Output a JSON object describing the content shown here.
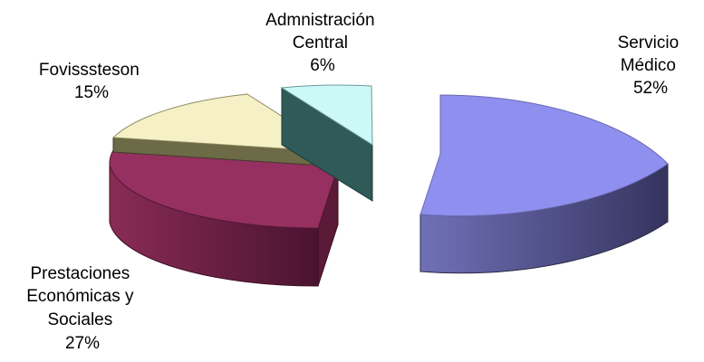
{
  "chart_data": {
    "type": "pie",
    "three_d": true,
    "exploded": true,
    "legend": "none",
    "slices": [
      {
        "key": "servicio",
        "label_lines": [
          "Servicio",
          "Médico"
        ],
        "percent_label": "52%",
        "value": 52,
        "color": "#8f8fef"
      },
      {
        "key": "prestaciones",
        "label_lines": [
          "Prestaciones",
          "Económicas y",
          "Sociales"
        ],
        "percent_label": "27%",
        "value": 27,
        "color": "#963060"
      },
      {
        "key": "fovissteson",
        "label_lines": [
          "Fovisssteson"
        ],
        "percent_label": "15%",
        "value": 15,
        "color": "#f5f0c5"
      },
      {
        "key": "admin",
        "label_lines": [
          "Admnistración",
          "Central"
        ],
        "percent_label": "6%",
        "value": 6,
        "color": "#cdf8f8"
      }
    ]
  }
}
